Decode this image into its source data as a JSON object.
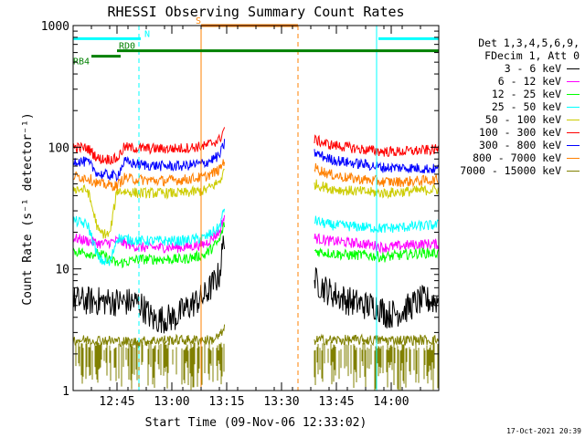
{
  "chart_data": {
    "type": "line",
    "title": "RHESSI Observing Summary Count Rates",
    "xlabel": "Start Time (09-Nov-06 12:33:02)",
    "ylabel": "Count Rate (s⁻¹ detector⁻¹)",
    "yscale": "log",
    "ylim": [
      1,
      1000
    ],
    "yticks": [
      {
        "v": 1,
        "label": "1"
      },
      {
        "v": 10,
        "label": "10"
      },
      {
        "v": 100,
        "label": "100"
      },
      {
        "v": 1000,
        "label": "1000"
      }
    ],
    "xlim": [
      "12:33",
      "14:13"
    ],
    "xticks": [
      "12:45",
      "13:00",
      "13:15",
      "13:30",
      "13:45",
      "14:00"
    ],
    "legend_header": [
      "Det 1,3,4,5,6,9,",
      "FDecim 1, Att 0"
    ],
    "series": [
      {
        "name": "3 - 6 keV",
        "color": "#000000",
        "seg1": [
          [
            0,
            5.5
          ],
          [
            18,
            5.3
          ],
          [
            22,
            3.8
          ],
          [
            28,
            4.0
          ],
          [
            30,
            4.5
          ],
          [
            32,
            5.0
          ],
          [
            36,
            6.0
          ],
          [
            40,
            9.0
          ],
          [
            41.5,
            20
          ]
        ],
        "seg2": [
          [
            66,
            8
          ],
          [
            70,
            6.5
          ],
          [
            75,
            5.5
          ],
          [
            80,
            5.0
          ],
          [
            83,
            5.0
          ],
          [
            86,
            4.2
          ],
          [
            90,
            4.5
          ],
          [
            95,
            5.5
          ],
          [
            100,
            5.5
          ]
        ]
      },
      {
        "name": "6 - 12 keV",
        "color": "#ff00ff",
        "seg1": [
          [
            0,
            18
          ],
          [
            8,
            16
          ],
          [
            12,
            17
          ],
          [
            18,
            15
          ],
          [
            22,
            15
          ],
          [
            30,
            15
          ],
          [
            36,
            16
          ],
          [
            40,
            20
          ],
          [
            41.5,
            28
          ]
        ],
        "seg2": [
          [
            66,
            18
          ],
          [
            70,
            17
          ],
          [
            75,
            16.5
          ],
          [
            80,
            16
          ],
          [
            85,
            15
          ],
          [
            90,
            15.5
          ],
          [
            95,
            16
          ],
          [
            100,
            16
          ]
        ]
      },
      {
        "name": "12 - 25 keV",
        "color": "#00ff00",
        "seg1": [
          [
            0,
            14
          ],
          [
            8,
            13
          ],
          [
            12,
            11
          ],
          [
            18,
            12
          ],
          [
            22,
            12
          ],
          [
            30,
            12
          ],
          [
            36,
            13
          ],
          [
            40,
            17
          ],
          [
            41.5,
            24
          ]
        ],
        "seg2": [
          [
            66,
            14
          ],
          [
            70,
            13.5
          ],
          [
            75,
            13
          ],
          [
            80,
            13
          ],
          [
            85,
            12.5
          ],
          [
            90,
            13
          ],
          [
            95,
            13.5
          ],
          [
            100,
            13.5
          ]
        ]
      },
      {
        "name": "25 - 50 keV",
        "color": "#00ffff",
        "seg1": [
          [
            0,
            25
          ],
          [
            4,
            23
          ],
          [
            7,
            12
          ],
          [
            10,
            11
          ],
          [
            12,
            18
          ],
          [
            18,
            17
          ],
          [
            24,
            17
          ],
          [
            30,
            17
          ],
          [
            36,
            18
          ],
          [
            40,
            22
          ],
          [
            41.5,
            32
          ]
        ],
        "seg2": [
          [
            66,
            25
          ],
          [
            70,
            23
          ],
          [
            75,
            22.5
          ],
          [
            80,
            22
          ],
          [
            85,
            21.5
          ],
          [
            90,
            22
          ],
          [
            95,
            22.5
          ],
          [
            100,
            23
          ]
        ]
      },
      {
        "name": "50 - 100 keV",
        "color": "#cccc00",
        "seg1": [
          [
            0,
            46
          ],
          [
            4,
            44
          ],
          [
            7,
            20
          ],
          [
            10,
            19
          ],
          [
            12,
            44
          ],
          [
            18,
            42
          ],
          [
            24,
            42
          ],
          [
            30,
            42
          ],
          [
            36,
            44
          ],
          [
            40,
            52
          ],
          [
            41.5,
            65
          ]
        ],
        "seg2": [
          [
            66,
            50
          ],
          [
            70,
            46
          ],
          [
            75,
            44
          ],
          [
            80,
            43
          ],
          [
            85,
            42
          ],
          [
            90,
            43
          ],
          [
            95,
            44
          ],
          [
            100,
            45
          ]
        ]
      },
      {
        "name": "100 - 300 keV",
        "color": "#ff0000",
        "seg1": [
          [
            0,
            100
          ],
          [
            4,
            98
          ],
          [
            7,
            80
          ],
          [
            12,
            80
          ],
          [
            14,
            100
          ],
          [
            18,
            98
          ],
          [
            24,
            97
          ],
          [
            30,
            98
          ],
          [
            36,
            102
          ],
          [
            40,
            115
          ],
          [
            41.5,
            145
          ]
        ],
        "seg2": [
          [
            66,
            115
          ],
          [
            70,
            105
          ],
          [
            75,
            100
          ],
          [
            80,
            95
          ],
          [
            85,
            92
          ],
          [
            90,
            92
          ],
          [
            95,
            94
          ],
          [
            100,
            96
          ]
        ]
      },
      {
        "name": "300 - 800 keV",
        "color": "#0000ff",
        "seg1": [
          [
            0,
            78
          ],
          [
            4,
            75
          ],
          [
            7,
            60
          ],
          [
            12,
            58
          ],
          [
            14,
            76
          ],
          [
            18,
            72
          ],
          [
            24,
            70
          ],
          [
            30,
            70
          ],
          [
            36,
            74
          ],
          [
            40,
            85
          ],
          [
            41.5,
            110
          ]
        ],
        "seg2": [
          [
            66,
            90
          ],
          [
            70,
            80
          ],
          [
            75,
            75
          ],
          [
            80,
            72
          ],
          [
            85,
            68
          ],
          [
            90,
            68
          ],
          [
            95,
            67
          ],
          [
            100,
            66
          ]
        ]
      },
      {
        "name": "800 - 7000 keV",
        "color": "#ff8000",
        "seg1": [
          [
            0,
            58
          ],
          [
            4,
            56
          ],
          [
            7,
            50
          ],
          [
            12,
            48
          ],
          [
            14,
            56
          ],
          [
            18,
            54
          ],
          [
            24,
            53
          ],
          [
            30,
            54
          ],
          [
            36,
            57
          ],
          [
            40,
            65
          ],
          [
            41.5,
            80
          ]
        ],
        "seg2": [
          [
            66,
            68
          ],
          [
            70,
            60
          ],
          [
            75,
            56
          ],
          [
            80,
            54
          ],
          [
            85,
            52
          ],
          [
            90,
            52
          ],
          [
            95,
            53
          ],
          [
            100,
            54
          ]
        ]
      },
      {
        "name": "7000 - 15000 keV",
        "color": "#808000",
        "seg1": [
          [
            0,
            2.6
          ],
          [
            8,
            2.6
          ],
          [
            16,
            2.5
          ],
          [
            24,
            2.6
          ],
          [
            32,
            2.6
          ],
          [
            38,
            2.6
          ],
          [
            40,
            2.8
          ],
          [
            41.5,
            3.2
          ]
        ],
        "seg2": [
          [
            66,
            2.6
          ],
          [
            72,
            2.6
          ],
          [
            80,
            2.6
          ],
          [
            88,
            2.6
          ],
          [
            94,
            2.6
          ],
          [
            100,
            2.6
          ]
        ]
      }
    ],
    "noise_band": {
      "series": "7000 - 15000 keV",
      "ymin": 1,
      "ymax": 2.5
    },
    "status_bars": [
      {
        "label": "N",
        "color": "#00ffff",
        "y": 780,
        "x1": 0,
        "x2": 18.5
      },
      {
        "label": "",
        "color": "#00ffff",
        "y": 780,
        "x1": 83.5,
        "x2": 100
      },
      {
        "label": "S",
        "color": "#ff8000",
        "y": 1000,
        "x1": 35,
        "x2": 61.5
      },
      {
        "label": "RD0",
        "color": "#008000",
        "y": 620,
        "x1": 12,
        "x2": 100
      },
      {
        "label": "RB4",
        "color": "#008000",
        "y": 560,
        "x1": 5,
        "x2": 13
      }
    ],
    "vlines": [
      {
        "x": 0,
        "color": "#00ffff",
        "style": "solid"
      },
      {
        "x": 18,
        "color": "#00ffff",
        "style": "dashed"
      },
      {
        "x": 35,
        "color": "#ff8000",
        "style": "solid"
      },
      {
        "x": 61.5,
        "color": "#ff8000",
        "style": "dashed"
      },
      {
        "x": 83,
        "color": "#00ffff",
        "style": "solid"
      },
      {
        "x": 100,
        "color": "#00ffff",
        "style": "dashed"
      }
    ],
    "gap": [
      41.5,
      66
    ]
  },
  "timestamp": "17-Oct-2021 20:39"
}
